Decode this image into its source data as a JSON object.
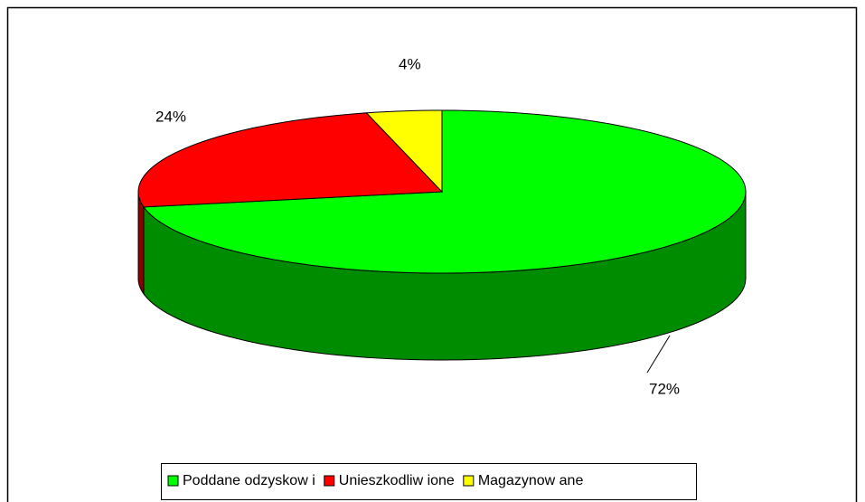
{
  "chart_data": {
    "type": "pie3d",
    "categories": [
      "Poddane odzyskow i",
      "Unieszkodliw ione",
      "Magazynow ane"
    ],
    "values": [
      72,
      24,
      4
    ],
    "value_labels": [
      "72%",
      "24%",
      "4%"
    ],
    "colors": [
      "#00ff00",
      "#ff0000",
      "#ffff00"
    ],
    "legend": "bottom"
  }
}
